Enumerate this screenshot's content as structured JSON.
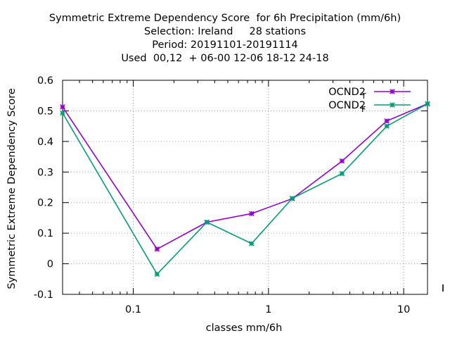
{
  "chart_data": {
    "type": "line",
    "title_lines": [
      "Symmetric Extreme Dependency Score  for 6h Precipitation (mm/6h)",
      "Selection: Ireland     28 stations",
      "Period: 20191101-20191114",
      "Used  00,12  + 06-00 12-06 18-12 24-18"
    ],
    "xlabel": "classes mm/6h",
    "ylabel": "Symmetric Extreme Dependency Score",
    "x_scale": "log",
    "xlim": [
      0.03,
      15
    ],
    "ylim": [
      -0.1,
      0.6
    ],
    "y_ticks": [
      -0.1,
      0,
      0.1,
      0.2,
      0.3,
      0.4,
      0.5,
      0.6
    ],
    "y_tick_labels": [
      "-0.1",
      "0",
      "0.1",
      "0.2",
      "0.3",
      "0.4",
      "0.5",
      "0.6"
    ],
    "x_ticks": [
      0.1,
      1,
      10
    ],
    "x_tick_labels": [
      "0.1",
      "1",
      "10"
    ],
    "grid": true,
    "legend_position": "top-right",
    "x": [
      0.03,
      0.15,
      0.35,
      0.75,
      1.5,
      3.5,
      7.5,
      15
    ],
    "series": [
      {
        "name": "OCND2",
        "name_subscript": "T",
        "color": "#9400d3",
        "values": [
          0.513,
          0.048,
          0.136,
          0.164,
          0.213,
          0.336,
          0.467,
          0.523
        ]
      },
      {
        "name": "OCND2",
        "name_subscript": "F",
        "color": "#009e73",
        "values": [
          0.493,
          -0.034,
          0.136,
          0.066,
          0.214,
          0.295,
          0.45,
          0.523
        ]
      }
    ]
  }
}
